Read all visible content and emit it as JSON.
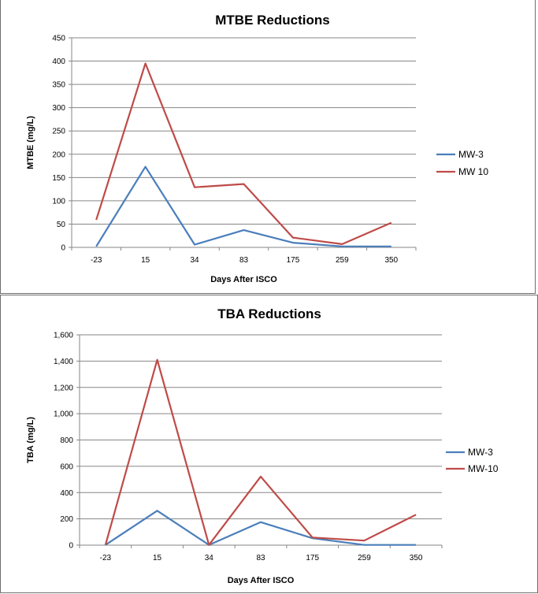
{
  "chart_data": [
    {
      "type": "line",
      "title": "MTBE Reductions",
      "xlabel": "Days After ISCO",
      "ylabel": "MTBE (mg/L)",
      "categories": [
        "-23",
        "15",
        "34",
        "83",
        "175",
        "259",
        "350"
      ],
      "ylim": [
        0,
        450
      ],
      "yticks": [
        "0",
        "50",
        "100",
        "150",
        "200",
        "250",
        "300",
        "350",
        "400",
        "450"
      ],
      "grid": true,
      "legend_position": "right",
      "series": [
        {
          "name": "MW-3",
          "color": "#4a7ebb",
          "values": [
            2,
            173,
            6,
            37,
            10,
            2,
            2
          ]
        },
        {
          "name": "MW 10",
          "color": "#be4b48",
          "values": [
            59,
            395,
            129,
            136,
            21,
            7,
            53
          ]
        }
      ]
    },
    {
      "type": "line",
      "title": "TBA Reductions",
      "xlabel": "Days After ISCO",
      "ylabel": "TBA (mg/L)",
      "categories": [
        "-23",
        "15",
        "34",
        "83",
        "175",
        "259",
        "350"
      ],
      "ylim": [
        0,
        1600
      ],
      "yticks": [
        "0",
        "200",
        "400",
        "600",
        "800",
        "1,000",
        "1,200",
        "1,400",
        "1,600"
      ],
      "grid": true,
      "legend_position": "right",
      "series": [
        {
          "name": "MW-3",
          "color": "#4a7ebb",
          "values": [
            2,
            262,
            2,
            175,
            53,
            2,
            2
          ]
        },
        {
          "name": "MW-10",
          "color": "#be4b48",
          "values": [
            2,
            1410,
            2,
            522,
            58,
            35,
            232
          ]
        }
      ]
    }
  ]
}
